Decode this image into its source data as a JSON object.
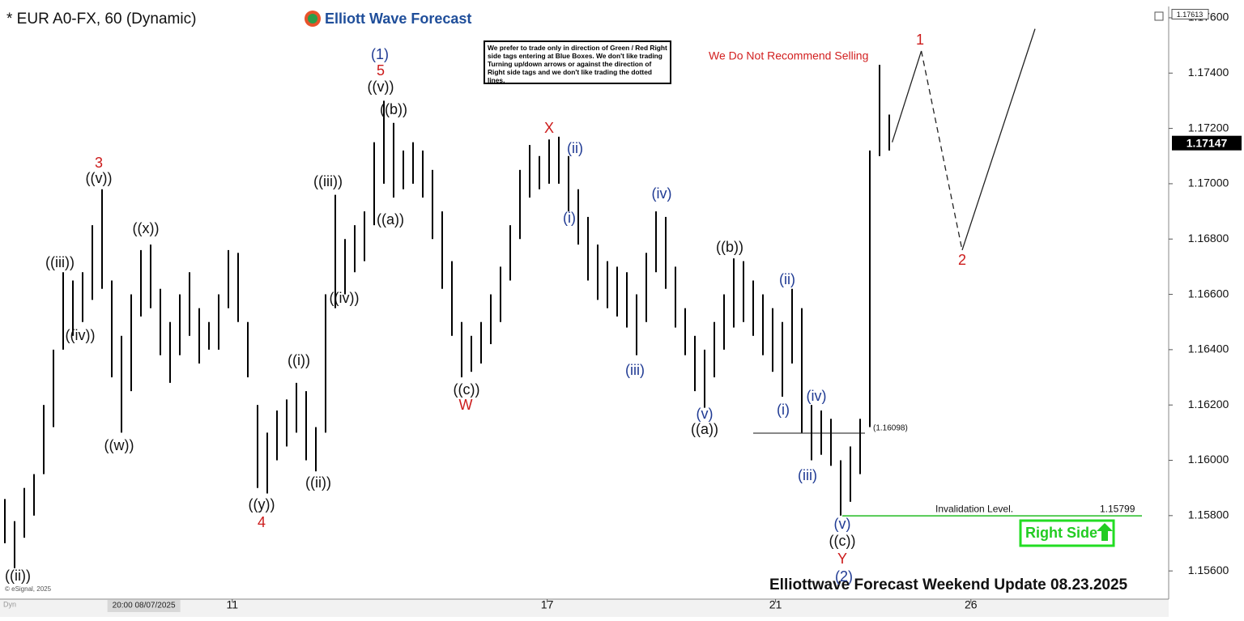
{
  "chart_data": {
    "type": "hilo",
    "title": "* EUR A0-FX, 60 (Dynamic)",
    "logo": "Elliott Wave Forecast",
    "note": "We prefer to trade only in direction of Green / Red Right side tags entering at Blue Boxes. We don't like trading Turning up/down arrows or against the direction of Right side tags and we don't like trading the dotted lines.",
    "warning": "We Do Not Recommend Selling",
    "footer": "Elliottwave Forecast Weekend  Update 08.23.2025",
    "credit": "© eSignal, 2025",
    "mode": "Dyn",
    "right_side": "Right Side",
    "date_marker": {
      "value": 14.3,
      "label": "20:00 08/07/2025"
    },
    "bar_color": "#000000",
    "x": [
      0,
      1,
      2,
      3,
      4,
      5,
      6,
      7,
      8,
      9,
      10,
      11,
      12,
      13,
      14,
      15,
      16,
      17,
      18,
      19,
      20,
      21,
      22,
      23,
      24,
      25,
      26,
      27,
      28,
      29,
      30,
      31,
      32,
      33,
      34,
      35,
      36,
      37,
      38,
      39,
      40,
      41,
      42,
      43,
      44,
      45,
      46,
      47,
      48,
      49,
      50,
      51,
      52,
      53,
      54,
      55,
      56,
      57,
      58,
      59,
      60,
      61,
      62,
      63,
      64,
      65,
      66,
      67,
      68,
      69,
      70,
      71,
      72,
      73,
      74,
      75,
      76,
      77,
      78,
      79,
      80,
      81,
      82,
      83,
      84,
      85,
      86,
      87,
      88,
      89,
      90,
      91
    ],
    "high": [
      1.1586,
      1.1578,
      1.159,
      1.1595,
      1.162,
      1.164,
      1.1668,
      1.1665,
      1.1668,
      1.1685,
      1.1698,
      1.1665,
      1.1645,
      1.166,
      1.1676,
      1.1678,
      1.1662,
      1.165,
      1.166,
      1.1668,
      1.1655,
      1.165,
      1.166,
      1.1676,
      1.1675,
      1.165,
      1.162,
      1.161,
      1.1618,
      1.1622,
      1.1628,
      1.1625,
      1.1612,
      1.166,
      1.1696,
      1.168,
      1.1685,
      1.169,
      1.1715,
      1.173,
      1.1722,
      1.1712,
      1.1715,
      1.1712,
      1.1705,
      1.169,
      1.1672,
      1.165,
      1.1645,
      1.165,
      1.166,
      1.167,
      1.1685,
      1.1705,
      1.1714,
      1.171,
      1.1716,
      1.1717,
      1.171,
      1.1698,
      1.1688,
      1.1678,
      1.1672,
      1.167,
      1.1668,
      1.166,
      1.1675,
      1.169,
      1.1688,
      1.167,
      1.1655,
      1.1645,
      1.164,
      1.165,
      1.166,
      1.1673,
      1.1672,
      1.1665,
      1.166,
      1.1655,
      1.165,
      1.1662,
      1.1655,
      1.162,
      1.1618,
      1.1615,
      1.16,
      1.1605,
      1.1615,
      1.1712,
      1.1743,
      1.1725
    ],
    "low": [
      1.157,
      1.1561,
      1.1572,
      1.158,
      1.1595,
      1.1612,
      1.164,
      1.1645,
      1.165,
      1.1658,
      1.1662,
      1.163,
      1.161,
      1.1625,
      1.1652,
      1.1655,
      1.1638,
      1.1628,
      1.1638,
      1.1645,
      1.1635,
      1.164,
      1.164,
      1.1655,
      1.165,
      1.163,
      1.159,
      1.1588,
      1.16,
      1.1605,
      1.161,
      1.16,
      1.1596,
      1.161,
      1.1655,
      1.166,
      1.1668,
      1.1672,
      1.1685,
      1.17,
      1.1695,
      1.1698,
      1.17,
      1.1695,
      1.168,
      1.1662,
      1.1645,
      1.163,
      1.1632,
      1.1635,
      1.1642,
      1.165,
      1.1665,
      1.168,
      1.1695,
      1.1698,
      1.17,
      1.17,
      1.169,
      1.1678,
      1.1665,
      1.1658,
      1.1655,
      1.1652,
      1.1648,
      1.1638,
      1.165,
      1.1668,
      1.1662,
      1.1648,
      1.1638,
      1.1625,
      1.1619,
      1.163,
      1.164,
      1.1648,
      1.165,
      1.1645,
      1.1638,
      1.1632,
      1.1623,
      1.1635,
      1.161,
      1.16,
      1.1602,
      1.1598,
      1.158,
      1.1585,
      1.1595,
      1.1612,
      1.171,
      1.1712
    ],
    "projection": {
      "x": [
        91.3,
        94.3,
        98.5,
        106
      ],
      "values": [
        1.1715,
        1.1748,
        1.1676,
        1.1756
      ],
      "dashed": [
        false,
        true,
        false
      ]
    },
    "xlim": [
      -0.5,
      119.5
    ],
    "xticks": [
      {
        "value": 23.4,
        "label": "11"
      },
      {
        "value": 55.8,
        "label": "17"
      },
      {
        "value": 79.3,
        "label": "21"
      },
      {
        "value": 99.4,
        "label": "26"
      }
    ],
    "ylim": [
      1.15498,
      1.17635
    ],
    "yticks": [
      {
        "value": 1.156,
        "label": "1.15600"
      },
      {
        "value": 1.158,
        "label": "1.15800"
      },
      {
        "value": 1.16,
        "label": "1.16000"
      },
      {
        "value": 1.162,
        "label": "1.16200"
      },
      {
        "value": 1.164,
        "label": "1.16400"
      },
      {
        "value": 1.166,
        "label": "1.16600"
      },
      {
        "value": 1.168,
        "label": "1.16800"
      },
      {
        "value": 1.17,
        "label": "1.17000"
      },
      {
        "value": 1.172,
        "label": "1.17200"
      },
      {
        "value": 1.174,
        "label": "1.17400"
      },
      {
        "value": 1.176,
        "label": "1.17600"
      }
    ],
    "level": {
      "value": 1.16098,
      "label": "(1.16098)"
    },
    "invalidation": {
      "text": "Invalidation Level.",
      "value": 1.15799,
      "label": "1.15799",
      "color": "#22bb22"
    },
    "last_price": {
      "value": 1.17147,
      "label": "1.17147"
    },
    "top_price": {
      "value": 1.17613,
      "label": "1.17613"
    },
    "wave_labels": [
      {
        "text": "((ii))",
        "color": "#111111"
      },
      {
        "text": "((iii))",
        "color": "#111111"
      },
      {
        "text": "((iv))",
        "color": "#111111"
      },
      {
        "text": "3",
        "color": "#cc1b1b"
      },
      {
        "text": "((v))",
        "color": "#111111"
      },
      {
        "text": "((w))",
        "color": "#111111"
      },
      {
        "text": "((x))",
        "color": "#111111"
      },
      {
        "text": "4",
        "color": "#cc1b1b"
      },
      {
        "text": "((y))",
        "color": "#111111"
      },
      {
        "text": "((i))",
        "color": "#111111"
      },
      {
        "text": "((ii))",
        "color": "#111111"
      },
      {
        "text": "((iii))",
        "color": "#111111"
      },
      {
        "text": "((iv))",
        "color": "#111111"
      },
      {
        "text": "(1)",
        "color": "#1f3a93"
      },
      {
        "text": "5",
        "color": "#cc1b1b"
      },
      {
        "text": "((v))",
        "color": "#111111"
      },
      {
        "text": "((b))",
        "color": "#111111"
      },
      {
        "text": "((a))",
        "color": "#111111"
      },
      {
        "text": "((c))",
        "color": "#111111"
      },
      {
        "text": "W",
        "color": "#cc1b1b"
      },
      {
        "text": "X",
        "color": "#cc1b1b"
      },
      {
        "text": "(ii)",
        "color": "#1f3a93"
      },
      {
        "text": "(i)",
        "color": "#1f3a93"
      },
      {
        "text": "(iv)",
        "color": "#1f3a93"
      },
      {
        "text": "(iii)",
        "color": "#1f3a93"
      },
      {
        "text": "(v)",
        "color": "#1f3a93"
      },
      {
        "text": "((a))",
        "color": "#111111"
      },
      {
        "text": "((b))",
        "color": "#111111"
      },
      {
        "text": "(ii)",
        "color": "#1f3a93"
      },
      {
        "text": "(i)",
        "color": "#1f3a93"
      },
      {
        "text": "(iv)",
        "color": "#1f3a93"
      },
      {
        "text": "(iii)",
        "color": "#1f3a93"
      },
      {
        "text": "(v)",
        "color": "#1f3a93"
      },
      {
        "text": "((c))",
        "color": "#111111"
      },
      {
        "text": "Y",
        "color": "#cc1b1b"
      },
      {
        "text": "(2)",
        "color": "#1f3a93"
      },
      {
        "text": "1",
        "color": "#cc1b1b"
      },
      {
        "text": "2",
        "color": "#cc1b1b"
      }
    ]
  }
}
